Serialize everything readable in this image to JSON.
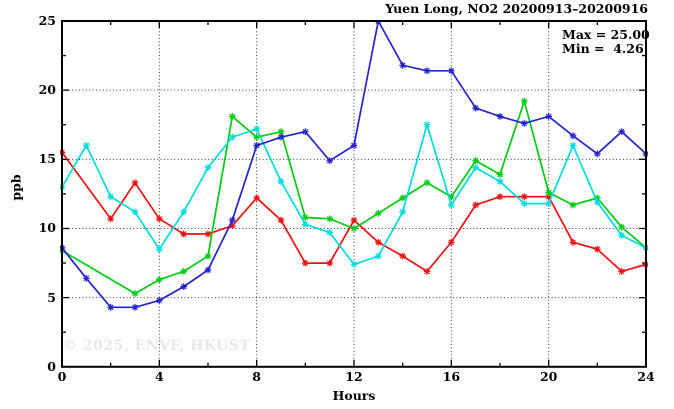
{
  "watermark": {
    "text": "© 2025, ENVF, HKUST",
    "color": "#e4e7ec"
  },
  "chart_data": {
    "type": "line",
    "title": "Yuen Long, NO2 20200913–20200916",
    "xlabel": "Hours",
    "ylabel": "ppb",
    "xlim": [
      0,
      24
    ],
    "ylim": [
      0,
      25
    ],
    "xticks": [
      0,
      4,
      8,
      12,
      16,
      20,
      24
    ],
    "xticks_minor": [
      2,
      6,
      10,
      14,
      18,
      22
    ],
    "yticks": [
      0,
      5,
      10,
      15,
      20,
      25
    ],
    "yticks_minor": [
      2.5,
      7.5,
      12.5,
      17.5,
      22.5
    ],
    "grid_x": [
      4,
      8,
      12,
      16,
      20
    ],
    "grid_y": [
      5,
      10,
      15,
      20
    ],
    "grid_style": "dotted",
    "legend_position": "none",
    "marker": "asterisk",
    "x": [
      0,
      1,
      2,
      3,
      4,
      5,
      6,
      7,
      8,
      9,
      10,
      11,
      12,
      13,
      14,
      15,
      16,
      17,
      18,
      19,
      20,
      21,
      22,
      23,
      24
    ],
    "series": [
      {
        "name": "series-red",
        "color": "#ee1111",
        "values": [
          15.5,
          null,
          10.7,
          13.3,
          10.7,
          9.6,
          9.6,
          10.2,
          12.2,
          10.6,
          7.5,
          7.5,
          10.6,
          9.0,
          8.0,
          6.9,
          9.0,
          11.7,
          12.3,
          12.3,
          12.3,
          9.0,
          8.5,
          6.9,
          7.4
        ]
      },
      {
        "name": "series-green",
        "color": "#00cc11",
        "values": [
          8.4,
          null,
          null,
          5.3,
          6.3,
          6.9,
          8.0,
          18.1,
          16.6,
          17.0,
          10.8,
          10.7,
          10.0,
          11.1,
          12.2,
          13.3,
          12.3,
          14.9,
          13.9,
          19.2,
          12.6,
          11.7,
          12.2,
          10.1,
          8.6
        ]
      },
      {
        "name": "series-cyan",
        "color": "#00dcdc",
        "values": [
          13.0,
          16.0,
          12.3,
          11.2,
          8.5,
          11.2,
          14.4,
          16.6,
          17.2,
          13.4,
          10.3,
          9.7,
          7.4,
          8.0,
          11.2,
          17.5,
          11.7,
          14.4,
          13.4,
          11.8,
          11.8,
          16.0,
          11.9,
          9.5,
          8.6
        ]
      },
      {
        "name": "series-blue",
        "color": "#2424cc",
        "values": [
          8.6,
          6.4,
          4.3,
          4.3,
          4.8,
          5.8,
          7.0,
          10.6,
          16.0,
          16.6,
          17.0,
          14.9,
          16.0,
          25.0,
          21.8,
          21.4,
          21.4,
          18.7,
          18.1,
          17.6,
          18.1,
          16.7,
          15.4,
          17.0,
          15.4
        ]
      }
    ],
    "annotations": {
      "max_label": "Max = 25.00",
      "min_label": "Min =  4.26"
    }
  }
}
